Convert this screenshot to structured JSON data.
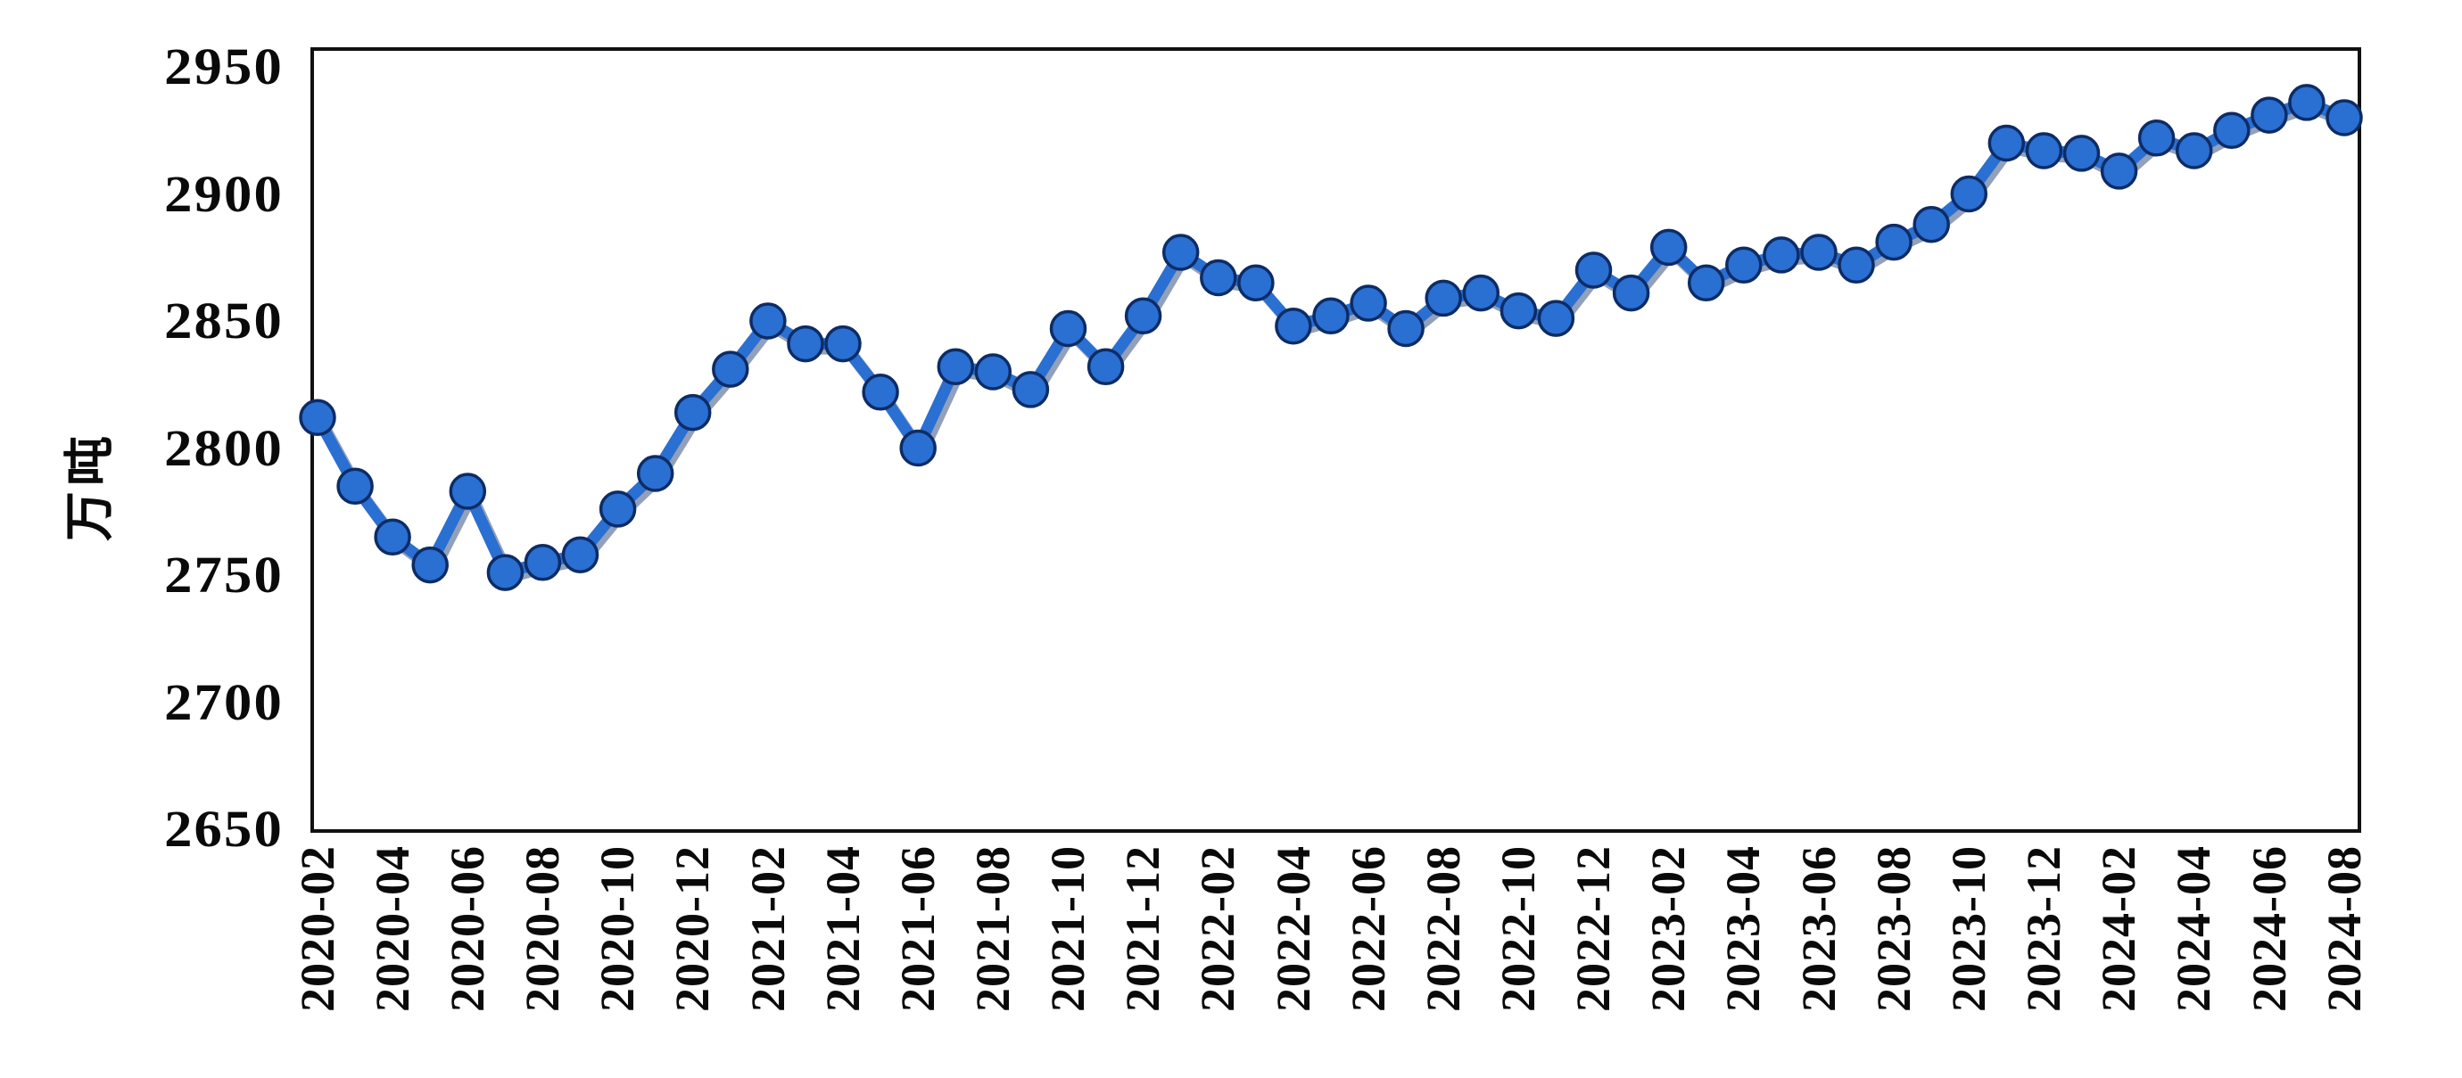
{
  "chart_data": {
    "type": "line",
    "title": "",
    "xlabel": "",
    "ylabel": "万吨",
    "ylim": [
      2650,
      2950
    ],
    "yticks": [
      2950,
      2900,
      2850,
      2800,
      2750,
      2700,
      2650
    ],
    "grid": false,
    "legend_position": "none",
    "line_color": "#2a6fd2",
    "marker_color": "#2a6fd2",
    "marker_edge_color": "#0d2c66",
    "axis_color": "#111111",
    "background_color": "#ffffff",
    "categories": [
      "2020-02",
      "2020-03",
      "2020-04",
      "2020-05",
      "2020-06",
      "2020-07",
      "2020-08",
      "2020-09",
      "2020-10",
      "2020-11",
      "2020-12",
      "2021-01",
      "2021-02",
      "2021-03",
      "2021-04",
      "2021-05",
      "2021-06",
      "2021-07",
      "2021-08",
      "2021-09",
      "2021-10",
      "2021-11",
      "2021-12",
      "2022-01",
      "2022-02",
      "2022-03",
      "2022-04",
      "2022-05",
      "2022-06",
      "2022-07",
      "2022-08",
      "2022-09",
      "2022-10",
      "2022-11",
      "2022-12",
      "2023-01",
      "2023-02",
      "2023-03",
      "2023-04",
      "2023-05",
      "2023-06",
      "2023-07",
      "2023-08",
      "2023-09",
      "2023-10",
      "2023-11",
      "2023-12",
      "2024-01",
      "2024-02",
      "2024-03",
      "2024-04",
      "2024-05",
      "2024-06",
      "2024-07",
      "2024-08"
    ],
    "values": [
      2812,
      2785,
      2765,
      2754,
      2783,
      2751,
      2755,
      2758,
      2776,
      2790,
      2814,
      2831,
      2850,
      2841,
      2841,
      2822,
      2800,
      2832,
      2830,
      2823,
      2847,
      2832,
      2852,
      2877,
      2867,
      2865,
      2848,
      2852,
      2857,
      2847,
      2859,
      2861,
      2854,
      2851,
      2870,
      2861,
      2879,
      2865,
      2872,
      2876,
      2877,
      2872,
      2881,
      2888,
      2900,
      2920,
      2917,
      2916,
      2909,
      2922,
      2917,
      2925,
      2931,
      2936,
      2930
    ],
    "x_tick_labels": [
      "2020-02",
      "2020-04",
      "2020-06",
      "2020-08",
      "2020-10",
      "2020-12",
      "2021-02",
      "2021-04",
      "2021-06",
      "2021-08",
      "2021-10",
      "2021-12",
      "2022-02",
      "2022-04",
      "2022-06",
      "2022-08",
      "2022-10",
      "2022-12",
      "2023-02",
      "2023-04",
      "2023-06",
      "2023-08",
      "2023-10",
      "2023-12",
      "2024-02",
      "2024-04",
      "2024-06",
      "2024-08"
    ]
  }
}
